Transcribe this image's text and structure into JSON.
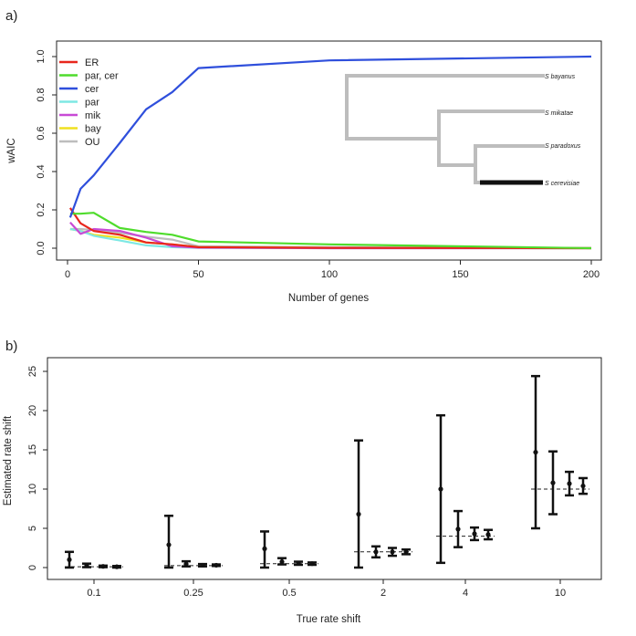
{
  "chart_data": [
    {
      "panel_label": "a)",
      "type": "line",
      "xlabel": "Number of genes",
      "ylabel": "wAIC",
      "xlim": [
        0,
        200
      ],
      "ylim": [
        0,
        1.0
      ],
      "xticks": [
        0,
        50,
        100,
        150,
        200
      ],
      "yticks": [
        0.0,
        0.2,
        0.4,
        0.6,
        0.8,
        1.0
      ],
      "xtick_labels": [
        "0",
        "50",
        "100",
        "150",
        "200"
      ],
      "ytick_labels": [
        "0.0",
        "0.2",
        "0.4",
        "0.6",
        "0.8",
        "1.0"
      ],
      "legend_position": "top-left",
      "series": [
        {
          "name": "ER",
          "color": "#e8261c",
          "x": [
            1,
            5,
            10,
            20,
            30,
            40,
            50,
            100,
            200
          ],
          "y": [
            0.21,
            0.13,
            0.09,
            0.07,
            0.03,
            0.02,
            0.005,
            0.002,
            0.0
          ]
        },
        {
          "name": "par, cer",
          "color": "#4fdc2c",
          "x": [
            1,
            5,
            10,
            20,
            30,
            40,
            50,
            100,
            200
          ],
          "y": [
            0.18,
            0.18,
            0.185,
            0.105,
            0.085,
            0.07,
            0.035,
            0.02,
            0.0
          ]
        },
        {
          "name": "cer",
          "color": "#2f4fdc",
          "x": [
            1,
            5,
            10,
            20,
            30,
            40,
            50,
            100,
            200
          ],
          "y": [
            0.16,
            0.31,
            0.38,
            0.55,
            0.725,
            0.815,
            0.94,
            0.98,
            1.0
          ]
        },
        {
          "name": "par",
          "color": "#7ee8e4",
          "x": [
            1,
            5,
            10,
            20,
            30,
            40,
            50,
            100,
            200
          ],
          "y": [
            0.1,
            0.09,
            0.065,
            0.04,
            0.015,
            0.005,
            0.002,
            0.0,
            0.0
          ]
        },
        {
          "name": "mik",
          "color": "#c84ad6",
          "x": [
            1,
            5,
            10,
            20,
            30,
            40,
            50,
            100,
            200
          ],
          "y": [
            0.135,
            0.075,
            0.1,
            0.09,
            0.055,
            0.01,
            0.003,
            0.0,
            0.0
          ]
        },
        {
          "name": "bay",
          "color": "#f0e020",
          "x": [
            1,
            5,
            10,
            20,
            30,
            40,
            50,
            100,
            200
          ],
          "y": [
            0.1,
            0.09,
            0.07,
            0.055,
            0.03,
            0.02,
            0.005,
            0.002,
            0.0
          ]
        },
        {
          "name": "OU",
          "color": "#bdbdbd",
          "x": [
            1,
            5,
            10,
            20,
            30,
            40,
            50,
            100,
            200
          ],
          "y": [
            0.1,
            0.1,
            0.095,
            0.08,
            0.06,
            0.045,
            0.01,
            0.005,
            0.0
          ]
        }
      ],
      "tree": {
        "species": [
          "S bayanus",
          "S mikatae",
          "S paradoxus",
          "S cerevisiae"
        ],
        "highlighted_branch": "S cerevisiae",
        "branch_color": "#bdbdbd",
        "highlight_color": "#111111"
      }
    },
    {
      "panel_label": "b)",
      "type": "errorbar",
      "xlabel": "True rate shift",
      "ylabel": "Estimated rate shift",
      "ylim": [
        0,
        25
      ],
      "yticks": [
        0,
        5,
        10,
        15,
        20,
        25
      ],
      "ytick_labels": [
        "0",
        "5",
        "10",
        "15",
        "20",
        "25"
      ],
      "categories": [
        "0.1",
        "0.25",
        "0.5",
        "2",
        "4",
        "10"
      ],
      "true_values": [
        0.1,
        0.25,
        0.5,
        2,
        4,
        10
      ],
      "groups": [
        {
          "category": "0.1",
          "points": [
            {
              "mean": 1.0,
              "low": 0.0,
              "high": 2.0
            },
            {
              "mean": 0.25,
              "low": 0.05,
              "high": 0.5
            },
            {
              "mean": 0.15,
              "low": 0.05,
              "high": 0.25
            },
            {
              "mean": 0.1,
              "low": 0.0,
              "high": 0.2
            }
          ]
        },
        {
          "category": "0.25",
          "points": [
            {
              "mean": 2.9,
              "low": 0.0,
              "high": 6.6
            },
            {
              "mean": 0.45,
              "low": 0.15,
              "high": 0.8
            },
            {
              "mean": 0.3,
              "low": 0.15,
              "high": 0.45
            },
            {
              "mean": 0.3,
              "low": 0.2,
              "high": 0.4
            }
          ]
        },
        {
          "category": "0.5",
          "points": [
            {
              "mean": 2.4,
              "low": 0.0,
              "high": 4.6
            },
            {
              "mean": 0.75,
              "low": 0.4,
              "high": 1.2
            },
            {
              "mean": 0.55,
              "low": 0.35,
              "high": 0.75
            },
            {
              "mean": 0.5,
              "low": 0.35,
              "high": 0.65
            }
          ]
        },
        {
          "category": "2",
          "points": [
            {
              "mean": 6.8,
              "low": 0.0,
              "high": 16.2
            },
            {
              "mean": 2.0,
              "low": 1.3,
              "high": 2.7
            },
            {
              "mean": 2.0,
              "low": 1.5,
              "high": 2.5
            },
            {
              "mean": 2.0,
              "low": 1.7,
              "high": 2.3
            }
          ]
        },
        {
          "category": "4",
          "points": [
            {
              "mean": 10.0,
              "low": 0.6,
              "high": 19.4
            },
            {
              "mean": 4.9,
              "low": 2.6,
              "high": 7.2
            },
            {
              "mean": 4.3,
              "low": 3.5,
              "high": 5.1
            },
            {
              "mean": 4.2,
              "low": 3.6,
              "high": 4.8
            }
          ]
        },
        {
          "category": "10",
          "points": [
            {
              "mean": 14.7,
              "low": 5.0,
              "high": 24.4
            },
            {
              "mean": 10.8,
              "low": 6.8,
              "high": 14.8
            },
            {
              "mean": 10.7,
              "low": 9.2,
              "high": 12.2
            },
            {
              "mean": 10.4,
              "low": 9.4,
              "high": 11.4
            }
          ]
        }
      ]
    }
  ]
}
